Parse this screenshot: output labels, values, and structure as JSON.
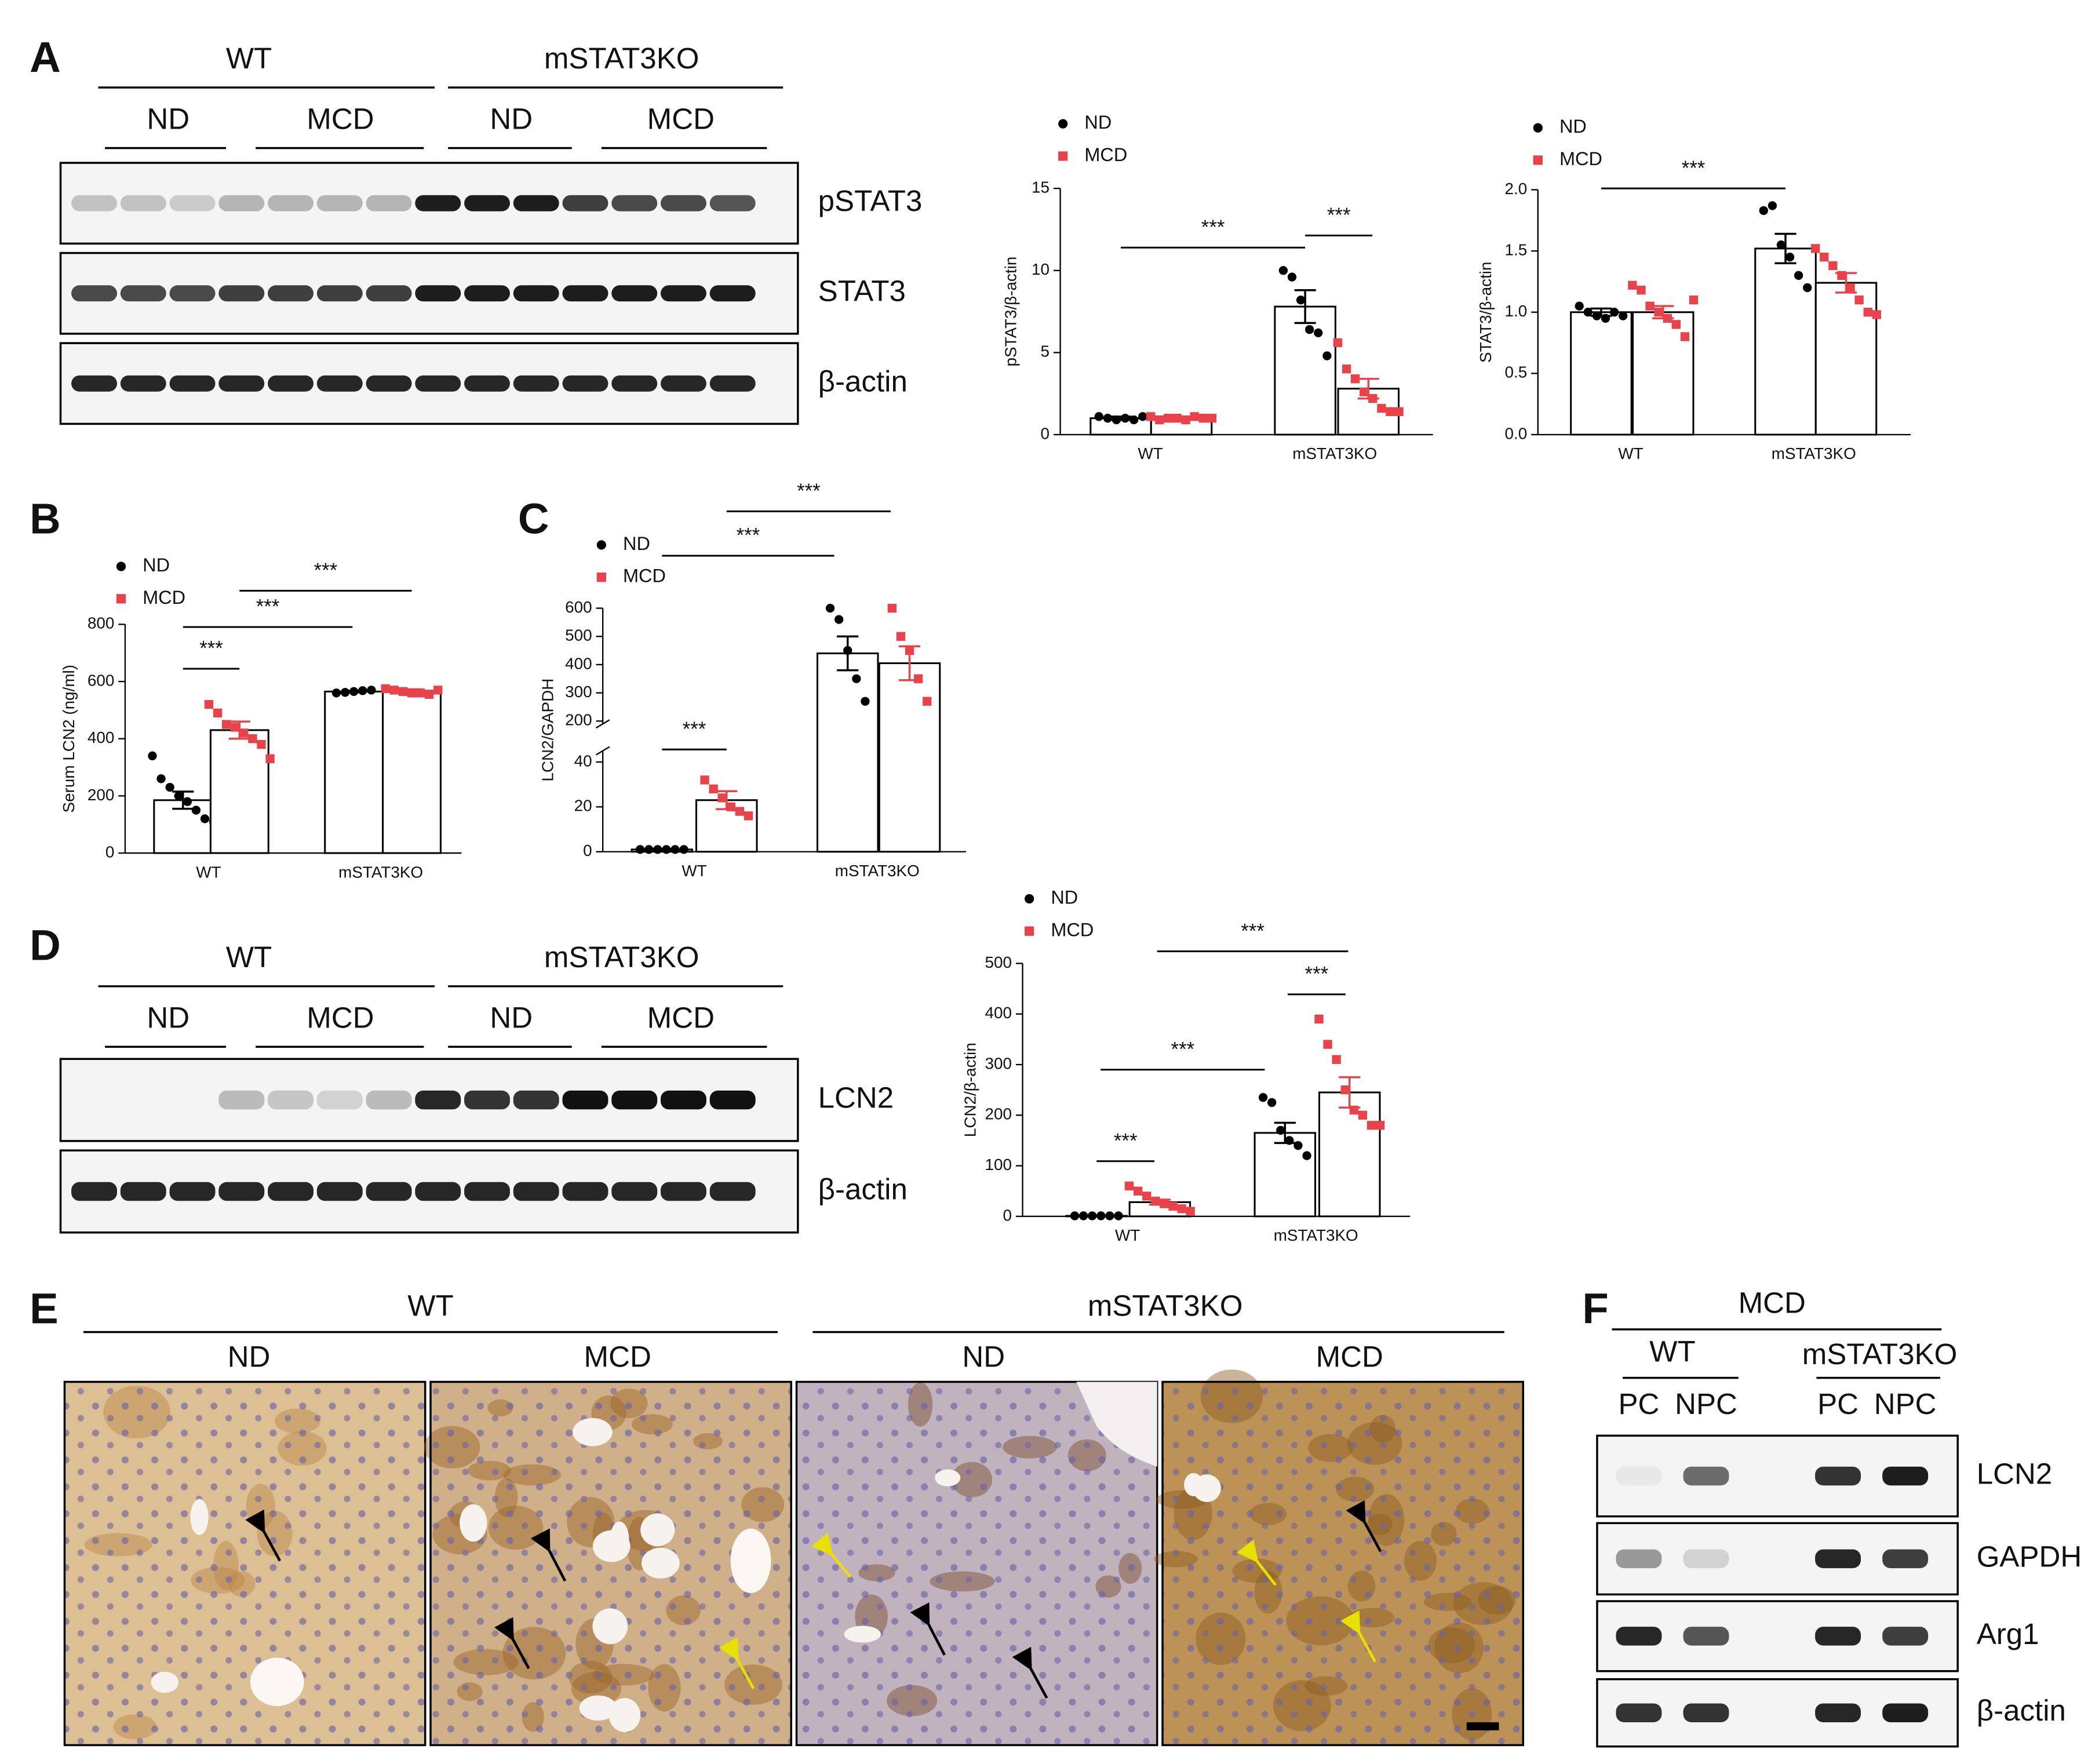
{
  "panels": [
    "A",
    "B",
    "C",
    "D",
    "E",
    "F"
  ],
  "blots": {
    "A": {
      "groups": [
        "WT",
        "mSTAT3KO"
      ],
      "diets": [
        "ND",
        "MCD",
        "ND",
        "MCD"
      ],
      "rows": [
        "pSTAT3",
        "STAT3",
        "β-actin"
      ]
    },
    "D": {
      "groups": [
        "WT",
        "mSTAT3KO"
      ],
      "diets": [
        "ND",
        "MCD",
        "ND",
        "MCD"
      ],
      "rows": [
        "LCN2",
        "β-actin"
      ]
    },
    "F": {
      "title": "MCD",
      "groups": [
        "WT",
        "mSTAT3KO"
      ],
      "fractions": [
        "PC",
        "NPC",
        "PC",
        "NPC"
      ],
      "rows": [
        "LCN2",
        "GAPDH",
        "Arg1",
        "β-actin"
      ]
    }
  },
  "histology": {
    "groups": [
      "WT",
      "mSTAT3KO"
    ],
    "diets": [
      "ND",
      "MCD",
      "ND",
      "MCD"
    ]
  },
  "chart_data": [
    {
      "type": "bar",
      "ylabel": "pSTAT3/β-actin",
      "categories": [
        "WT",
        "mSTAT3KO"
      ],
      "ylim": [
        0,
        15
      ],
      "yticks": [
        0,
        5,
        10,
        15
      ],
      "annotations": [
        "***",
        "***"
      ],
      "series": [
        {
          "name": "ND",
          "color": "#000000",
          "marker": "circle",
          "values": [
            1.0,
            7.8
          ],
          "errors": [
            0.1,
            1.0
          ],
          "points": [
            [
              1.1,
              1.0,
              0.9,
              1.0,
              0.9,
              1.1
            ],
            [
              10.0,
              9.6,
              8.2,
              6.4,
              6.2,
              4.8
            ]
          ]
        },
        {
          "name": "MCD",
          "color": "#e8424a",
          "marker": "square",
          "values": [
            1.0,
            2.8
          ],
          "errors": [
            0.1,
            0.6
          ],
          "points": [
            [
              1.1,
              0.9,
              1.0,
              1.0,
              0.9,
              1.1,
              1.0,
              1.0
            ],
            [
              5.6,
              4.0,
              3.4,
              2.6,
              2.2,
              1.6,
              1.4,
              1.4
            ]
          ]
        }
      ]
    },
    {
      "type": "bar",
      "ylabel": "STAT3/β-actin",
      "categories": [
        "WT",
        "mSTAT3KO"
      ],
      "ylim": [
        0,
        2.0
      ],
      "yticks": [
        {
          "value": 0,
          "label": "0.0"
        },
        0.5,
        {
          "value": 1,
          "label": "1.0"
        },
        1.5,
        {
          "value": 2,
          "label": "2.0"
        }
      ],
      "annotations": [
        "***"
      ],
      "series": [
        {
          "name": "ND",
          "color": "#000000",
          "marker": "circle",
          "values": [
            1.0,
            1.52
          ],
          "errors": [
            0.03,
            0.12
          ],
          "points": [
            [
              1.05,
              1.0,
              0.97,
              0.95,
              1.0,
              0.97
            ],
            [
              1.83,
              1.87,
              1.55,
              1.45,
              1.3,
              1.2
            ]
          ]
        },
        {
          "name": "MCD",
          "color": "#e8424a",
          "marker": "square",
          "values": [
            1.0,
            1.24
          ],
          "errors": [
            0.05,
            0.08
          ],
          "points": [
            [
              1.22,
              1.18,
              1.05,
              1.0,
              0.95,
              0.9,
              0.8,
              1.1
            ],
            [
              1.52,
              1.45,
              1.38,
              1.3,
              1.2,
              1.1,
              1.0,
              0.98
            ]
          ]
        }
      ]
    },
    {
      "type": "bar",
      "ylabel": "Serum LCN2 (ng/ml)",
      "categories": [
        "WT",
        "mSTAT3KO"
      ],
      "ylim": [
        0,
        800
      ],
      "yticks": [
        0,
        200,
        400,
        600,
        800
      ],
      "annotations": [
        "***",
        "***",
        "***"
      ],
      "series": [
        {
          "name": "ND",
          "color": "#000000",
          "marker": "circle",
          "values": [
            185,
            565
          ],
          "errors": [
            30,
            3
          ],
          "points": [
            [
              340,
              260,
              230,
              200,
              180,
              150,
              120,
              110
            ],
            [
              560,
              562,
              565,
              568,
              570
            ]
          ]
        },
        {
          "name": "MCD",
          "color": "#e8424a",
          "marker": "square",
          "values": [
            430,
            568
          ],
          "errors": [
            30,
            5
          ],
          "points": [
            [
              520,
              490,
              450,
              440,
              420,
              400,
              380,
              330
            ],
            [
              575,
              570,
              565,
              560,
              560,
              555,
              570
            ]
          ]
        }
      ]
    },
    {
      "type": "bar",
      "ylabel": "LCN2/GAPDH",
      "categories": [
        "WT",
        "mSTAT3KO"
      ],
      "ylim": [
        0,
        600
      ],
      "ybreak": [
        45,
        190
      ],
      "yticks": [
        0,
        20,
        40,
        200,
        300,
        400,
        500,
        600
      ],
      "annotations": [
        "***",
        "***",
        "***"
      ],
      "series": [
        {
          "name": "ND",
          "color": "#000000",
          "marker": "circle",
          "values": [
            1,
            440
          ],
          "errors": [
            0.3,
            60
          ],
          "points": [
            [
              1,
              1,
              1,
              1,
              1,
              1
            ],
            [
              600,
              560,
              450,
              350,
              270
            ]
          ]
        },
        {
          "name": "MCD",
          "color": "#e8424a",
          "marker": "square",
          "values": [
            23,
            405
          ],
          "errors": [
            4,
            60
          ],
          "points": [
            [
              32,
              28,
              24,
              20,
              18,
              16
            ],
            [
              600,
              500,
              450,
              350,
              270
            ]
          ]
        }
      ]
    },
    {
      "type": "bar",
      "ylabel": "LCN2/β-actin",
      "categories": [
        "WT",
        "mSTAT3KO"
      ],
      "ylim": [
        0,
        500
      ],
      "yticks": [
        0,
        100,
        200,
        300,
        400,
        500
      ],
      "annotations": [
        "***",
        "***",
        "***",
        "***"
      ],
      "series": [
        {
          "name": "ND",
          "color": "#000000",
          "marker": "circle",
          "values": [
            1,
            165
          ],
          "errors": [
            0.2,
            20
          ],
          "points": [
            [
              1,
              1,
              1,
              1,
              1,
              1
            ],
            [
              235,
              225,
              170,
              150,
              140,
              120
            ]
          ]
        },
        {
          "name": "MCD",
          "color": "#e8424a",
          "marker": "square",
          "values": [
            28,
            245
          ],
          "errors": [
            5,
            30
          ],
          "points": [
            [
              60,
              50,
              40,
              30,
              25,
              20,
              15,
              10
            ],
            [
              390,
              340,
              310,
              250,
              210,
              200,
              180,
              180
            ]
          ]
        }
      ]
    }
  ]
}
